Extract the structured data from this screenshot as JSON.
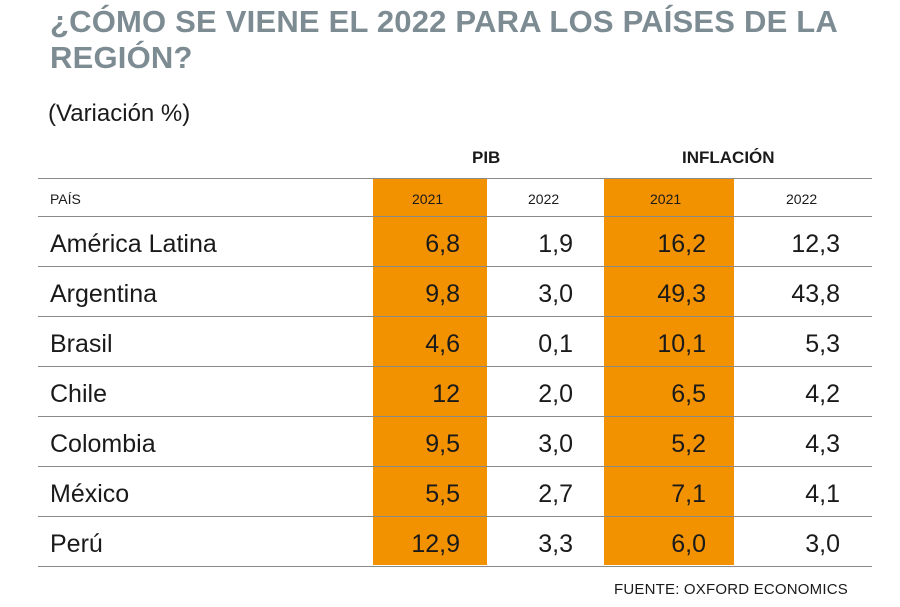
{
  "title": "¿CÓMO SE VIENE EL 2022 PARA LOS PAÍSES DE LA REGIÓN?",
  "subtitle": "(Variación %)",
  "groups": {
    "pib": "PIB",
    "inflacion": "INFLACIÓN"
  },
  "source": "FUENTE: OXFORD ECONOMICS",
  "colors": {
    "title": "#7d8c92",
    "highlight": "#f39200",
    "rule": "#8a8a8a"
  },
  "chart_data": {
    "type": "table",
    "title": "¿CÓMO SE VIENE EL 2022 PARA LOS PAÍSES DE LA REGIÓN?",
    "subtitle": "(Variación %)",
    "country_header": "PAÍS",
    "column_groups": [
      "PIB",
      "INFLACIÓN"
    ],
    "columns": [
      "2021",
      "2022",
      "2021",
      "2022"
    ],
    "highlighted_columns": [
      0,
      2
    ],
    "rows": [
      {
        "country": "América Latina",
        "values": [
          "6,8",
          "1,9",
          "16,2",
          "12,3"
        ]
      },
      {
        "country": "Argentina",
        "values": [
          "9,8",
          "3,0",
          "49,3",
          "43,8"
        ]
      },
      {
        "country": "Brasil",
        "values": [
          "4,6",
          "0,1",
          "10,1",
          "5,3"
        ]
      },
      {
        "country": "Chile",
        "values": [
          "12",
          "2,0",
          "6,5",
          "4,2"
        ]
      },
      {
        "country": "Colombia",
        "values": [
          "9,5",
          "3,0",
          "5,2",
          "4,3"
        ]
      },
      {
        "country": "México",
        "values": [
          "5,5",
          "2,7",
          "7,1",
          "4,1"
        ]
      },
      {
        "country": "Perú",
        "values": [
          "12,9",
          "3,3",
          "6,0",
          "3,0"
        ]
      }
    ]
  }
}
